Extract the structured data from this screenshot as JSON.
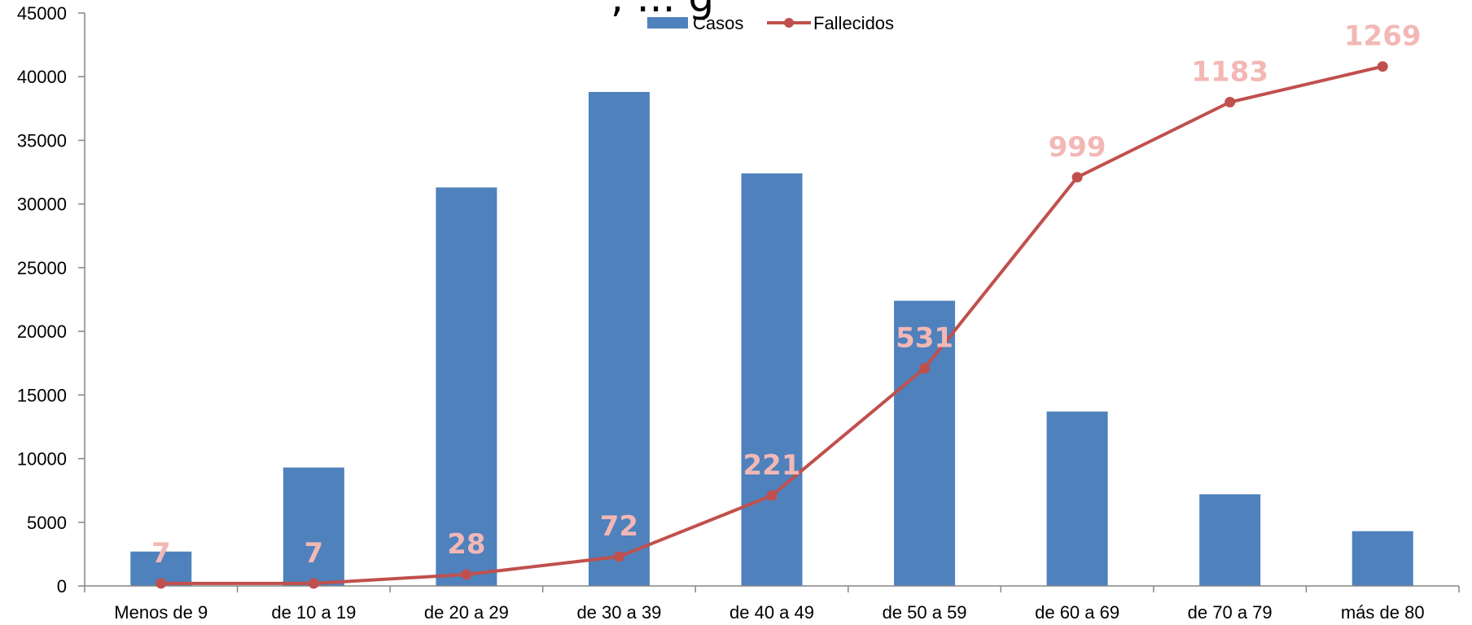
{
  "chart_data": {
    "type": "bar",
    "title": ", ... g",
    "categories": [
      "Menos de 9",
      "de 10 a 19",
      "de 20 a 29",
      "de 30 a 39",
      "de 40 a 49",
      "de 50 a 59",
      "de 60 a 69",
      "de 70 a 79",
      "más de 80"
    ],
    "ylim": [
      0,
      45000
    ],
    "yticks": [
      0,
      5000,
      10000,
      15000,
      20000,
      25000,
      30000,
      35000,
      40000,
      45000
    ],
    "grid": false,
    "legend_position": "top-center",
    "series": [
      {
        "name": "Casos",
        "type": "bar",
        "color": "#4f81bd",
        "values": [
          2700,
          9300,
          31300,
          38800,
          32400,
          22400,
          13700,
          7200,
          4300
        ]
      },
      {
        "name": "Fallecidos",
        "type": "line",
        "color": "#c0504d",
        "values": [
          200,
          200,
          900,
          2300,
          7100,
          17100,
          32100,
          38000,
          40800
        ],
        "data_labels": [
          "7",
          "7",
          "28",
          "72",
          "221",
          "531",
          "999",
          "1183",
          "1269"
        ],
        "label_color": "#f2b8b5"
      }
    ]
  }
}
